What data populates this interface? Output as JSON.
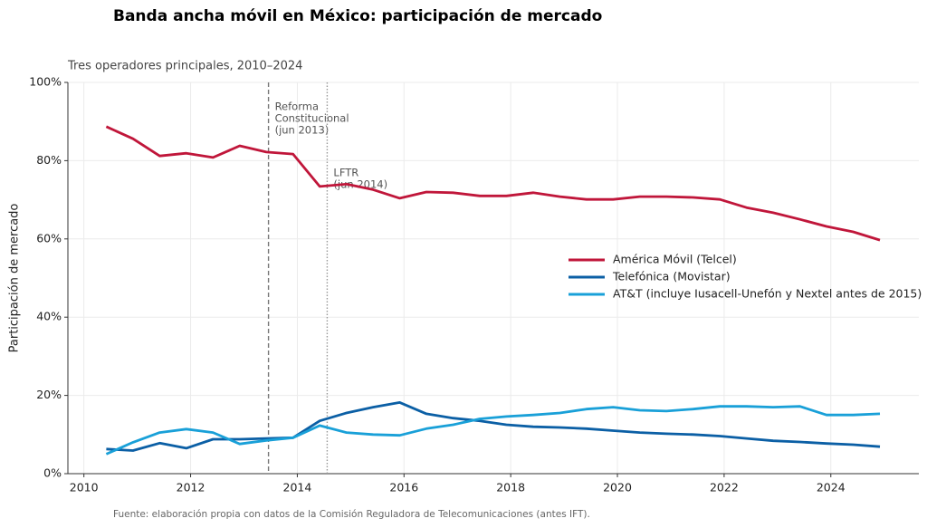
{
  "chart_data": {
    "type": "line",
    "title": "Banda ancha móvil en México: participación de mercado",
    "subtitle": "Tres operadores principales, 2010–2024",
    "y_label": "Participación de mercado",
    "source": "Fuente: elaboración propia con datos de la Comisión Reguladora de Telecomunicaciones (antes IFT).",
    "x": [
      2010.42,
      2010.92,
      2011.42,
      2011.92,
      2012.42,
      2012.92,
      2013.42,
      2013.92,
      2014.42,
      2014.92,
      2015.42,
      2015.92,
      2016.42,
      2016.92,
      2017.42,
      2017.92,
      2018.42,
      2018.92,
      2019.42,
      2019.92,
      2020.42,
      2020.92,
      2021.42,
      2021.92,
      2022.42,
      2022.92,
      2023.42,
      2023.92,
      2024.42,
      2024.92
    ],
    "series": [
      {
        "name": "América Móvil (Telcel)",
        "color": "#c0163a",
        "values": [
          88.7,
          85.6,
          81.2,
          81.9,
          80.8,
          83.8,
          82.2,
          81.7,
          73.4,
          74,
          72.6,
          70.4,
          72,
          71.8,
          71,
          71,
          71.8,
          70.8,
          70.1,
          70.1,
          70.8,
          70.8,
          70.6,
          70.1,
          68,
          66.7,
          65,
          63.2,
          61.8,
          59.7
        ]
      },
      {
        "name": "Telefónica (Movistar)",
        "color": "#0b5fa5",
        "values": [
          6.3,
          5.9,
          7.8,
          6.5,
          8.8,
          8.8,
          9,
          9.2,
          13.5,
          15.5,
          17,
          18.2,
          15.3,
          14.2,
          13.5,
          12.5,
          12,
          11.8,
          11.5,
          11,
          10.5,
          10.2,
          10,
          9.6,
          9,
          8.4,
          8.1,
          7.7,
          7.4,
          6.9
        ]
      },
      {
        "name": "AT&T (incluye Iusacell-Unefón y Nextel antes de 2015)",
        "color": "#19a0d8",
        "values": [
          5,
          8,
          10.5,
          11.4,
          10.5,
          7.6,
          8.5,
          9.2,
          12.3,
          10.5,
          10,
          9.8,
          11.5,
          12.5,
          14,
          14.6,
          15,
          15.5,
          16.5,
          17,
          16.2,
          16,
          16.5,
          17.2,
          17.2,
          17,
          17.2,
          15,
          15,
          15.3
        ]
      }
    ],
    "xlim": [
      2009.7,
      2025.65
    ],
    "xticks": [
      2010,
      2012,
      2014,
      2016,
      2018,
      2020,
      2022,
      2024
    ],
    "ylim": [
      0,
      100
    ],
    "yticks": [
      {
        "value": 0,
        "label": "0%"
      },
      {
        "value": 20,
        "label": "20%"
      },
      {
        "value": 40,
        "label": "40%"
      },
      {
        "value": 60,
        "label": "60%"
      },
      {
        "value": 80,
        "label": "80%"
      },
      {
        "value": 100,
        "label": "100%"
      }
    ],
    "grid": true,
    "legend": "right",
    "annotations": [
      {
        "x": 2013.46,
        "style": "dashed",
        "lines": [
          "Reforma",
          "Constitucional",
          "(jun 2013)"
        ]
      },
      {
        "x": 2014.56,
        "style": "dotted",
        "lines": [
          "LFTR",
          "(jun 2014)"
        ]
      }
    ]
  }
}
